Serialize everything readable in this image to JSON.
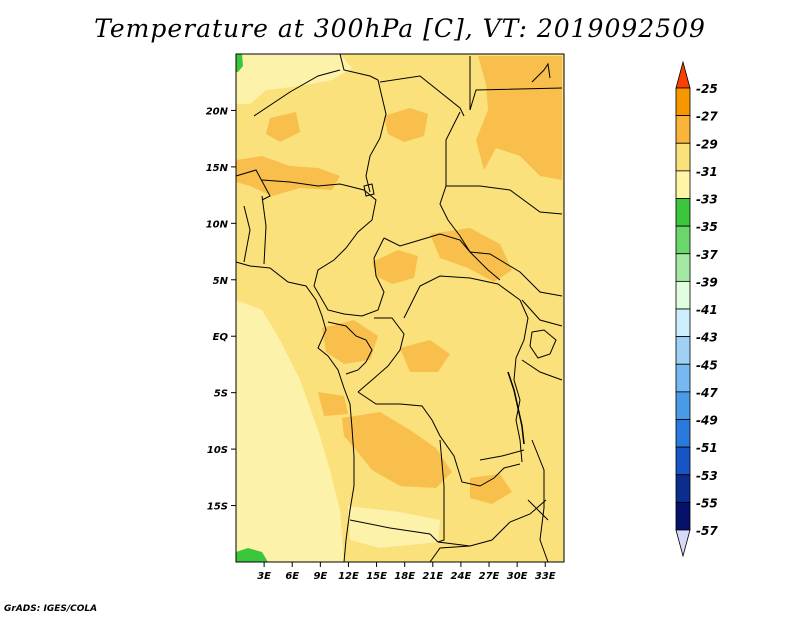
{
  "title": "Temperature at 300hPa [C], VT: 2019092509",
  "credit": "GrADS: IGES/COLA",
  "map": {
    "lon_range": [
      0,
      35
    ],
    "lat_range": [
      -20,
      25
    ],
    "lat_ticks": [
      {
        "value": 20,
        "label": "20N"
      },
      {
        "value": 15,
        "label": "15N"
      },
      {
        "value": 10,
        "label": "10N"
      },
      {
        "value": 5,
        "label": "5N"
      },
      {
        "value": 0,
        "label": "EQ"
      },
      {
        "value": -5,
        "label": "5S"
      },
      {
        "value": -10,
        "label": "10S"
      },
      {
        "value": -15,
        "label": "15S"
      }
    ],
    "lon_ticks": [
      {
        "value": 3,
        "label": "3E"
      },
      {
        "value": 6,
        "label": "6E"
      },
      {
        "value": 9,
        "label": "9E"
      },
      {
        "value": 12,
        "label": "12E"
      },
      {
        "value": 15,
        "label": "15E"
      },
      {
        "value": 18,
        "label": "18E"
      },
      {
        "value": 21,
        "label": "21E"
      },
      {
        "value": 24,
        "label": "24E"
      },
      {
        "value": 27,
        "label": "27E"
      },
      {
        "value": 30,
        "label": "30E"
      },
      {
        "value": 33,
        "label": "33E"
      }
    ],
    "background_color": "#fae17b",
    "warm_color": "#f8bf4c",
    "cool_color": "#fdf2a9",
    "cold_color": "#3cc63c",
    "border_color": "#000000"
  },
  "colorbar": {
    "levels": [
      "-25",
      "-27",
      "-29",
      "-31",
      "-33",
      "-35",
      "-37",
      "-39",
      "-41",
      "-43",
      "-45",
      "-47",
      "-49",
      "-51",
      "-53",
      "-55",
      "-57"
    ],
    "colors": [
      "#f96400",
      "#f89600",
      "#f9b43c",
      "#fae17b",
      "#fef5a6",
      "#3cc63c",
      "#6ad76a",
      "#a5e8a5",
      "#e0fde0",
      "#cceeff",
      "#9fd1f5",
      "#75b8f2",
      "#4a9be6",
      "#2a79dc",
      "#1755c4",
      "#0a2d8e",
      "#06116a"
    ],
    "over_color": "#f94000",
    "under_color": "#d8d8f8"
  }
}
